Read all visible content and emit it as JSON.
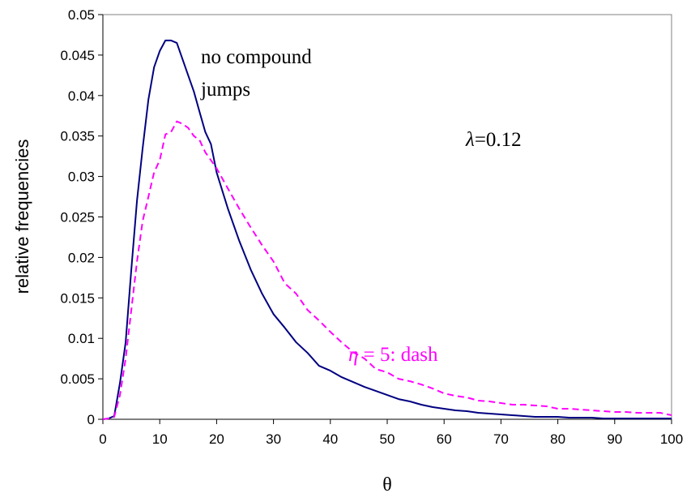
{
  "chart_data": {
    "type": "line",
    "title": "",
    "xlabel": "θ",
    "ylabel": "relative frequencies",
    "xlim": [
      0,
      100
    ],
    "ylim": [
      0,
      0.05
    ],
    "xticks": [
      0,
      10,
      20,
      30,
      40,
      50,
      60,
      70,
      80,
      90,
      100
    ],
    "xtick_labels": [
      "0",
      "10",
      "20",
      "30",
      "40",
      "50",
      "60",
      "70",
      "80",
      "90",
      "100"
    ],
    "yticks": [
      0,
      0.005,
      0.01,
      0.015,
      0.02,
      0.025,
      0.03,
      0.035,
      0.04,
      0.045,
      0.05
    ],
    "ytick_labels": [
      "0",
      "0.005",
      "0.01",
      "0.015",
      "0.02",
      "0.025",
      "0.03",
      "0.035",
      "0.04",
      "0.045",
      "0.05"
    ],
    "grid": false,
    "colors": {
      "series1": "#000080",
      "series2": "#ff00ff"
    },
    "series": [
      {
        "x": [
          0,
          1,
          2,
          3,
          4,
          5,
          6,
          7,
          8,
          9,
          10,
          11,
          12,
          13,
          14,
          15,
          16,
          17,
          18,
          19,
          20,
          22,
          24,
          26,
          28,
          30,
          32,
          34,
          36,
          38,
          40,
          42,
          44,
          46,
          48,
          50,
          52,
          54,
          56,
          58,
          60,
          62,
          64,
          66,
          68,
          70,
          72,
          74,
          76,
          78,
          80,
          82,
          84,
          86,
          88,
          90,
          92,
          94,
          96,
          98,
          100
        ],
        "y": [
          0,
          0.0001,
          0.0004,
          0.0045,
          0.0095,
          0.0185,
          0.027,
          0.0335,
          0.0395,
          0.0435,
          0.0455,
          0.0468,
          0.0468,
          0.0465,
          0.0445,
          0.0425,
          0.0405,
          0.038,
          0.0355,
          0.034,
          0.0305,
          0.026,
          0.022,
          0.0185,
          0.0155,
          0.013,
          0.0113,
          0.0095,
          0.0082,
          0.0066,
          0.006,
          0.0052,
          0.0046,
          0.004,
          0.0035,
          0.003,
          0.0025,
          0.0022,
          0.0018,
          0.0015,
          0.0013,
          0.0011,
          0.001,
          0.0008,
          0.0007,
          0.0006,
          0.0005,
          0.0004,
          0.0003,
          0.0003,
          0.0003,
          0.0002,
          0.0002,
          0.0002,
          0.0001,
          0.0001,
          0.0001,
          0.0001,
          0.0001,
          0.0001,
          0.0001
        ]
      },
      {
        "x": [
          0,
          1,
          2,
          3,
          4,
          5,
          6,
          7,
          8,
          9,
          10,
          11,
          12,
          13,
          14,
          15,
          16,
          17,
          18,
          19,
          20,
          22,
          24,
          26,
          28,
          30,
          32,
          34,
          36,
          38,
          40,
          42,
          44,
          46,
          48,
          50,
          52,
          54,
          56,
          58,
          60,
          62,
          64,
          66,
          68,
          70,
          72,
          74,
          76,
          78,
          80,
          82,
          84,
          86,
          88,
          90,
          92,
          94,
          96,
          98,
          100
        ],
        "y": [
          0,
          0.0001,
          0.0003,
          0.003,
          0.0075,
          0.0135,
          0.0195,
          0.0245,
          0.0275,
          0.0305,
          0.032,
          0.0352,
          0.0355,
          0.0368,
          0.0365,
          0.036,
          0.035,
          0.0345,
          0.033,
          0.032,
          0.031,
          0.0285,
          0.026,
          0.0237,
          0.0215,
          0.0195,
          0.0168,
          0.0155,
          0.0135,
          0.0122,
          0.0108,
          0.0095,
          0.0083,
          0.0075,
          0.0062,
          0.0058,
          0.005,
          0.0047,
          0.0043,
          0.0038,
          0.0032,
          0.0029,
          0.0027,
          0.0023,
          0.0022,
          0.002,
          0.0018,
          0.0018,
          0.0017,
          0.0016,
          0.0013,
          0.0013,
          0.0012,
          0.0011,
          0.001,
          0.0009,
          0.0009,
          0.0008,
          0.0008,
          0.0008,
          0.0005
        ]
      }
    ],
    "annotations": {
      "no_compound_line1": "no compound",
      "no_compound_line2": "jumps",
      "lambda_symbol": "λ",
      "lambda_value": "=0.12",
      "eta_symbol": "η",
      "eta_text": " = 5: dash"
    }
  }
}
